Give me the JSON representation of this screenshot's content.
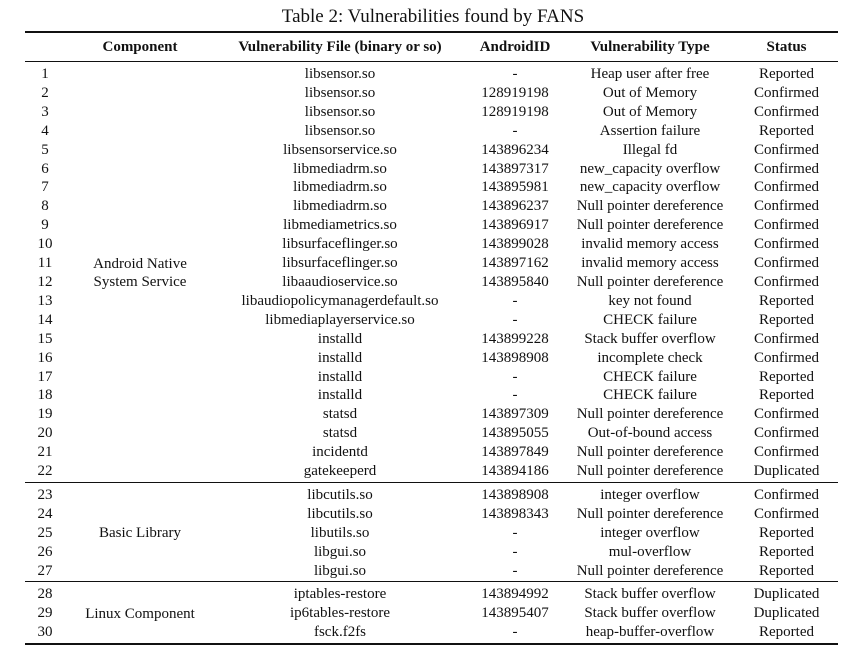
{
  "caption": "Table 2: Vulnerabilities found by FANS",
  "headers": {
    "num": "",
    "component": "Component",
    "file": "Vulnerability File (binary or so)",
    "android_id": "AndroidID",
    "type": "Vulnerability Type",
    "status": "Status"
  },
  "groups": [
    {
      "component": [
        "Android Native",
        "System Service"
      ],
      "rows": [
        {
          "num": "1",
          "file": "libsensor.so",
          "android_id": "-",
          "type": "Heap user after free",
          "status": "Reported"
        },
        {
          "num": "2",
          "file": "libsensor.so",
          "android_id": "128919198",
          "type": "Out of Memory",
          "status": "Confirmed"
        },
        {
          "num": "3",
          "file": "libsensor.so",
          "android_id": "128919198",
          "type": "Out of Memory",
          "status": "Confirmed"
        },
        {
          "num": "4",
          "file": "libsensor.so",
          "android_id": "-",
          "type": "Assertion failure",
          "status": "Reported"
        },
        {
          "num": "5",
          "file": "libsensorservice.so",
          "android_id": "143896234",
          "type": "Illegal fd",
          "status": "Confirmed"
        },
        {
          "num": "6",
          "file": "libmediadrm.so",
          "android_id": "143897317",
          "type": "new_capacity overflow",
          "status": "Confirmed"
        },
        {
          "num": "7",
          "file": "libmediadrm.so",
          "android_id": "143895981",
          "type": "new_capacity overflow",
          "status": "Confirmed"
        },
        {
          "num": "8",
          "file": "libmediadrm.so",
          "android_id": "143896237",
          "type": "Null pointer dereference",
          "status": "Confirmed"
        },
        {
          "num": "9",
          "file": "libmediametrics.so",
          "android_id": "143896917",
          "type": "Null pointer dereference",
          "status": "Confirmed"
        },
        {
          "num": "10",
          "file": "libsurfaceflinger.so",
          "android_id": "143899028",
          "type": "invalid memory access",
          "status": "Confirmed"
        },
        {
          "num": "11",
          "file": "libsurfaceflinger.so",
          "android_id": "143897162",
          "type": "invalid memory access",
          "status": "Confirmed"
        },
        {
          "num": "12",
          "file": "libaaudioservice.so",
          "android_id": "143895840",
          "type": "Null pointer dereference",
          "status": "Confirmed"
        },
        {
          "num": "13",
          "file": "libaudiopolicymanagerdefault.so",
          "android_id": "-",
          "type": "key not found",
          "status": "Reported"
        },
        {
          "num": "14",
          "file": "libmediaplayerservice.so",
          "android_id": "-",
          "type": "CHECK failure",
          "status": "Reported"
        },
        {
          "num": "15",
          "file": "installd",
          "android_id": "143899228",
          "type": "Stack buffer overflow",
          "status": "Confirmed"
        },
        {
          "num": "16",
          "file": "installd",
          "android_id": "143898908",
          "type": "incomplete check",
          "status": "Confirmed"
        },
        {
          "num": "17",
          "file": "installd",
          "android_id": "-",
          "type": "CHECK failure",
          "status": "Reported"
        },
        {
          "num": "18",
          "file": "installd",
          "android_id": "-",
          "type": "CHECK failure",
          "status": "Reported"
        },
        {
          "num": "19",
          "file": "statsd",
          "android_id": "143897309",
          "type": "Null pointer dereference",
          "status": "Confirmed"
        },
        {
          "num": "20",
          "file": "statsd",
          "android_id": "143895055",
          "type": "Out-of-bound access",
          "status": "Confirmed"
        },
        {
          "num": "21",
          "file": "incidentd",
          "android_id": "143897849",
          "type": "Null pointer dereference",
          "status": "Confirmed"
        },
        {
          "num": "22",
          "file": "gatekeeperd",
          "android_id": "143894186",
          "type": "Null pointer dereference",
          "status": "Duplicated"
        }
      ]
    },
    {
      "component": [
        "Basic Library"
      ],
      "rows": [
        {
          "num": "23",
          "file": "libcutils.so",
          "android_id": "143898908",
          "type": "integer overflow",
          "status": "Confirmed"
        },
        {
          "num": "24",
          "file": "libcutils.so",
          "android_id": "143898343",
          "type": "Null pointer dereference",
          "status": "Confirmed"
        },
        {
          "num": "25",
          "file": "libutils.so",
          "android_id": "-",
          "type": "integer overflow",
          "status": "Reported"
        },
        {
          "num": "26",
          "file": "libgui.so",
          "android_id": "-",
          "type": "mul-overflow",
          "status": "Reported"
        },
        {
          "num": "27",
          "file": "libgui.so",
          "android_id": "-",
          "type": "Null pointer dereference",
          "status": "Reported"
        }
      ]
    },
    {
      "component": [
        "Linux Component"
      ],
      "rows": [
        {
          "num": "28",
          "file": "iptables-restore",
          "android_id": "143894992",
          "type": "Stack buffer overflow",
          "status": "Duplicated"
        },
        {
          "num": "29",
          "file": "ip6tables-restore",
          "android_id": "143895407",
          "type": "Stack buffer overflow",
          "status": "Duplicated"
        },
        {
          "num": "30",
          "file": "fsck.f2fs",
          "android_id": "-",
          "type": "heap-buffer-overflow",
          "status": "Reported"
        }
      ]
    }
  ]
}
